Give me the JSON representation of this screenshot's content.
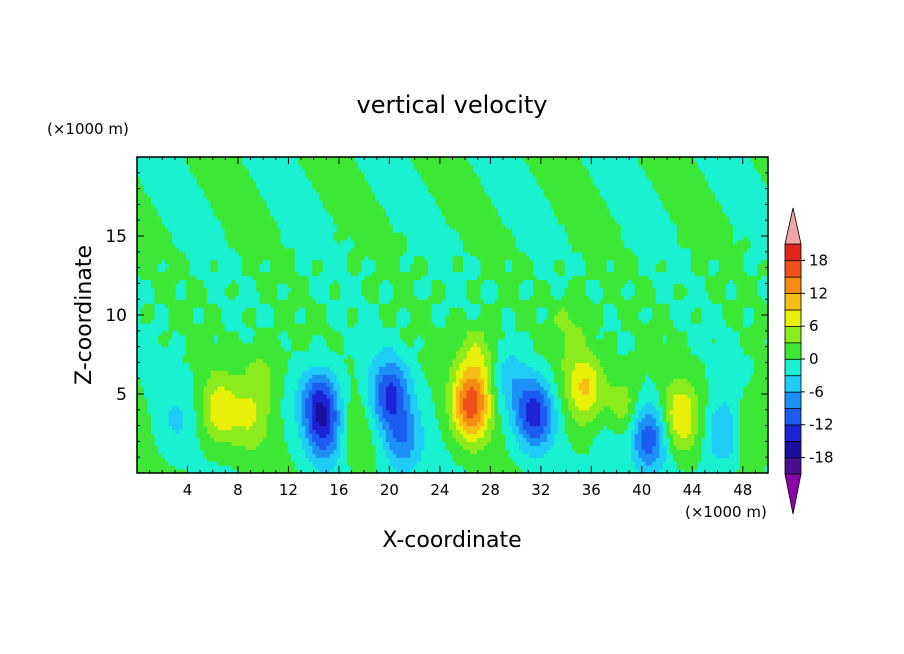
{
  "chart_data": {
    "type": "heatmap",
    "title": "vertical velocity",
    "xlabel": "X-coordinate",
    "ylabel": "Z-coordinate",
    "x_unit": "(×1000 m)",
    "y_unit": "(×1000 m)",
    "xlim": [
      0,
      50
    ],
    "ylim": [
      0,
      20
    ],
    "x_ticks": [
      4,
      8,
      12,
      16,
      20,
      24,
      28,
      32,
      36,
      40,
      44,
      48
    ],
    "y_ticks": [
      5,
      10,
      15
    ],
    "colorbar": {
      "levels": [
        -21,
        -18,
        -15,
        -12,
        -9,
        -6,
        -3,
        0,
        3,
        6,
        9,
        12,
        15,
        18,
        21
      ],
      "tick_labels": [
        18,
        12,
        6,
        0,
        -6,
        -12,
        -18
      ],
      "colors": [
        "#4B0E8C",
        "#1A0FA0",
        "#1E24D6",
        "#1C5CF0",
        "#1E8FF7",
        "#1ECCF5",
        "#19F0CF",
        "#3CE835",
        "#8CEB1C",
        "#E8F00A",
        "#F6BE14",
        "#F68B14",
        "#F0501A",
        "#E0261C",
        "#F4A6A6"
      ],
      "under_color": "#8B00A8",
      "over_color": "#F4A6A6"
    },
    "features": [
      {
        "x": 3.0,
        "z": 3.2,
        "w": -3
      },
      {
        "x": 6.5,
        "z": 4.0,
        "w": 8
      },
      {
        "x": 9.0,
        "z": 3.5,
        "w": 5
      },
      {
        "x": 10.0,
        "z": 6.5,
        "w": 4
      },
      {
        "x": 14.5,
        "z": 4.5,
        "w": -12
      },
      {
        "x": 15.0,
        "z": 2.5,
        "w": -8
      },
      {
        "x": 17.0,
        "z": 2.5,
        "w": 3
      },
      {
        "x": 20.0,
        "z": 5.0,
        "w": -12
      },
      {
        "x": 21.0,
        "z": 2.0,
        "w": -8
      },
      {
        "x": 26.5,
        "z": 4.3,
        "w": 16
      },
      {
        "x": 27.0,
        "z": 7.5,
        "w": 6
      },
      {
        "x": 31.5,
        "z": 3.8,
        "w": -13
      },
      {
        "x": 29.5,
        "z": 6.0,
        "w": -4
      },
      {
        "x": 35.5,
        "z": 5.5,
        "w": 9
      },
      {
        "x": 34.5,
        "z": 9.5,
        "w": 4
      },
      {
        "x": 38.5,
        "z": 4.0,
        "w": 7
      },
      {
        "x": 37.5,
        "z": 2.5,
        "w": -4
      },
      {
        "x": 40.5,
        "z": 2.3,
        "w": -11
      },
      {
        "x": 43.0,
        "z": 3.5,
        "w": 9
      },
      {
        "x": 46.5,
        "z": 2.5,
        "w": -7
      },
      {
        "x": 48.5,
        "z": 3.0,
        "w": 4
      }
    ]
  }
}
